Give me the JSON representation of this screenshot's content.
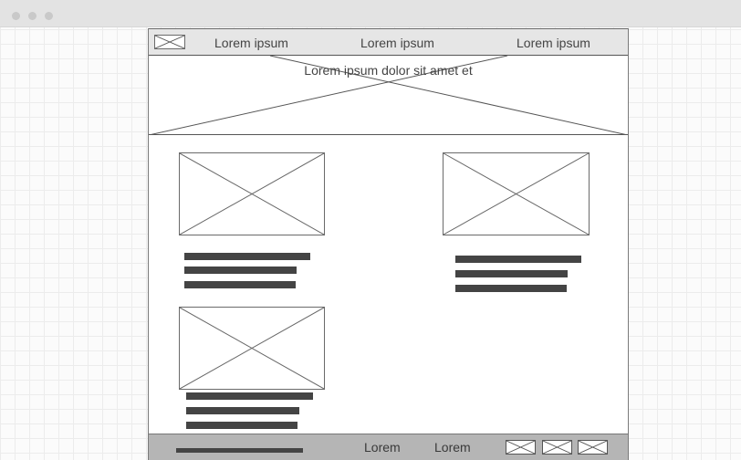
{
  "nav": {
    "links": [
      "Lorem ipsum",
      "Lorem ipsum",
      "Lorem ipsum"
    ]
  },
  "hero": {
    "title": "Lorem ipsum dolor sit amet et"
  },
  "footer": {
    "links": [
      "Lorem",
      "Lorem"
    ]
  }
}
